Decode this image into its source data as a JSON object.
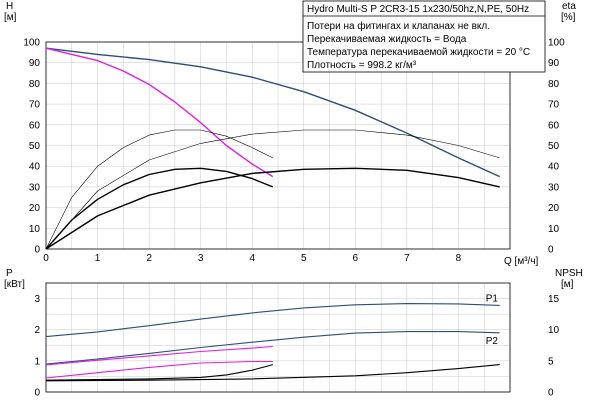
{
  "chart_data": [
    {
      "type": "line",
      "title": "Hydro Multi-S P 2CR3-15 1x230/50hz,N,PE, 50Hz",
      "info_lines": [
        "Потери на фитингах и клапанах не вкл.",
        "Перекачиваемая жидкость = Вода",
        "Температура перекачиваемой жидкости = 20 °C",
        "Плотность = 998.2 кг/м³"
      ],
      "xlabel": "Q [м³/ч]",
      "y_left_label": [
        "H",
        "[м]"
      ],
      "y_right_label": [
        "eta",
        "[%]"
      ],
      "xlim": [
        0,
        9
      ],
      "ylim": [
        0,
        100
      ],
      "x_ticks": [
        0,
        1,
        2,
        3,
        4,
        5,
        6,
        7,
        8
      ],
      "y_ticks": [
        0,
        10,
        20,
        30,
        40,
        50,
        60,
        70,
        80,
        90,
        100
      ],
      "grid": true,
      "series": [
        {
          "color": "#2a4f7a",
          "width": 1.4,
          "x": [
            0,
            1,
            2,
            3,
            4,
            5,
            6,
            7,
            8,
            8.8
          ],
          "y": [
            97,
            94,
            91.5,
            88,
            83,
            76,
            67,
            56,
            44,
            35
          ]
        },
        {
          "color": "#e21ee2",
          "width": 1.4,
          "x": [
            0,
            0.5,
            1,
            1.5,
            2,
            2.5,
            3,
            3.5,
            4,
            4.4
          ],
          "y": [
            97,
            94,
            91,
            86,
            79.5,
            71,
            61,
            50,
            41,
            35
          ]
        },
        {
          "color": "#000000",
          "width": 0.6,
          "x": [
            0,
            0.5,
            1,
            1.5,
            2,
            2.5,
            3,
            3.5,
            4,
            4.4
          ],
          "y": [
            0,
            25,
            40,
            49,
            55,
            57.5,
            57.5,
            54.5,
            49,
            44
          ]
        },
        {
          "color": "#000000",
          "width": 0.6,
          "x": [
            0,
            1,
            2,
            3,
            4,
            5,
            6,
            7,
            8,
            8.8
          ],
          "y": [
            0,
            28,
            43,
            51,
            55.5,
            57.5,
            57.5,
            55,
            50,
            44
          ]
        },
        {
          "color": "#000000",
          "width": 1.4,
          "x": [
            0,
            0.5,
            1,
            1.5,
            2,
            2.5,
            3,
            3.5,
            4,
            4.4
          ],
          "y": [
            0,
            14,
            24,
            31,
            36,
            38.5,
            39,
            37.5,
            34,
            30
          ]
        },
        {
          "color": "#000000",
          "width": 1.4,
          "x": [
            0,
            1,
            2,
            3,
            4,
            5,
            6,
            7,
            8,
            8.8
          ],
          "y": [
            0,
            16,
            26,
            32,
            36.5,
            38.5,
            39,
            38,
            34.5,
            30
          ]
        }
      ]
    },
    {
      "type": "line",
      "y_left_label": [
        "P",
        "[кВт]"
      ],
      "y_right_label": [
        "NPSH",
        "[м]"
      ],
      "xlim": [
        0,
        9
      ],
      "ylim": [
        0,
        3.5
      ],
      "y_ticks": [
        0,
        1,
        2,
        3
      ],
      "y_right_ticks": [
        0,
        5,
        10,
        15
      ],
      "grid": true,
      "series": [
        {
          "name": "P1",
          "color": "#2a4f7a",
          "width": 1.1,
          "x": [
            0,
            1,
            2,
            3,
            4,
            5,
            6,
            7,
            8,
            8.8
          ],
          "y": [
            1.78,
            1.93,
            2.13,
            2.34,
            2.54,
            2.7,
            2.8,
            2.84,
            2.83,
            2.78
          ]
        },
        {
          "name": "P2",
          "color": "#2a4f7a",
          "width": 1.1,
          "x": [
            0,
            1,
            2,
            3,
            4,
            5,
            6,
            7,
            8,
            8.8
          ],
          "y": [
            0.9,
            1.06,
            1.24,
            1.43,
            1.6,
            1.76,
            1.89,
            1.94,
            1.94,
            1.9
          ]
        },
        {
          "color": "#e21ee2",
          "width": 1.1,
          "x": [
            0,
            1,
            2,
            3,
            4,
            4.4
          ],
          "y": [
            0.87,
            1.02,
            1.16,
            1.3,
            1.41,
            1.46
          ]
        },
        {
          "color": "#e21ee2",
          "width": 1.1,
          "x": [
            0,
            1,
            2,
            3,
            4,
            4.4
          ],
          "y": [
            0.45,
            0.62,
            0.79,
            0.93,
            0.98,
            0.98
          ]
        },
        {
          "color": "#000000",
          "width": 1.1,
          "x": [
            0,
            1,
            2,
            3,
            3.5,
            4,
            4.4
          ],
          "y": [
            0.38,
            0.4,
            0.42,
            0.47,
            0.55,
            0.7,
            0.88
          ]
        },
        {
          "color": "#000000",
          "width": 1.1,
          "x": [
            0,
            2,
            4,
            6,
            7,
            8,
            8.8
          ],
          "y": [
            0.36,
            0.38,
            0.42,
            0.52,
            0.62,
            0.75,
            0.88
          ]
        }
      ]
    }
  ]
}
